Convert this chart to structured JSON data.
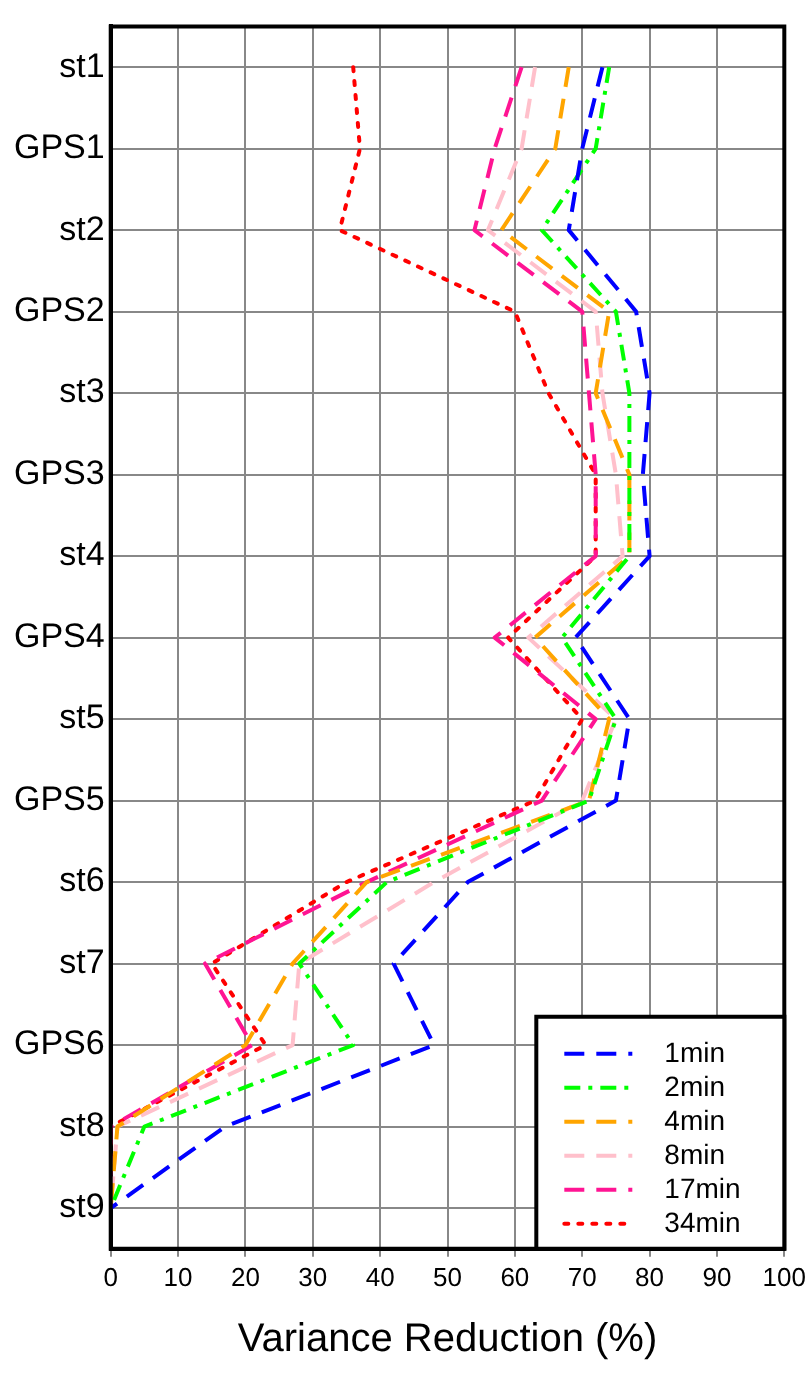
{
  "chart_data": {
    "type": "line",
    "orientation": "horizontal",
    "xlabel": "Variance Reduction (%)",
    "categories": [
      "st1",
      "GPS1",
      "st2",
      "GPS2",
      "st3",
      "GPS3",
      "st4",
      "GPS4",
      "st5",
      "GPS5",
      "st6",
      "st7",
      "GPS6",
      "st8",
      "st9"
    ],
    "xlim": [
      0,
      100
    ],
    "xticks": [
      0,
      10,
      20,
      30,
      40,
      50,
      60,
      70,
      80,
      90,
      100
    ],
    "grid": true,
    "legend": "bottom right",
    "marker": "none",
    "series": [
      {
        "name": "1min",
        "color": "#0000ff",
        "line_style": "dashed",
        "values": [
          73,
          70,
          68,
          78,
          80,
          79,
          80,
          69,
          77,
          75,
          53,
          42,
          48,
          17,
          0
        ]
      },
      {
        "name": "2min",
        "color": "#00ff00",
        "line_style": "dashdot",
        "values": [
          74,
          72,
          64,
          75,
          77,
          77,
          77,
          67,
          75,
          71,
          41,
          28,
          36,
          5,
          0
        ]
      },
      {
        "name": "4min",
        "color": "#ffa500",
        "line_style": "dashed",
        "values": [
          68,
          66,
          58,
          74,
          72,
          77,
          77,
          63,
          74,
          71,
          38,
          27,
          20,
          1,
          0
        ]
      },
      {
        "name": "8min",
        "color": "#ffc0cb",
        "line_style": "dashed",
        "values": [
          63,
          61,
          56,
          72,
          73,
          75,
          76,
          62,
          75,
          70,
          48,
          28,
          27,
          1,
          0
        ]
      },
      {
        "name": "17min",
        "color": "#ff1493",
        "line_style": "dashed",
        "values": [
          61,
          57,
          54,
          70,
          71,
          72,
          72,
          57,
          72,
          64,
          38,
          14,
          21,
          0,
          0
        ]
      },
      {
        "name": "34min",
        "color": "#ff0000",
        "line_style": "dotted",
        "values": [
          36,
          37,
          34,
          60,
          65,
          72,
          72,
          59,
          70,
          63,
          35,
          15,
          23,
          0,
          0
        ]
      }
    ]
  }
}
